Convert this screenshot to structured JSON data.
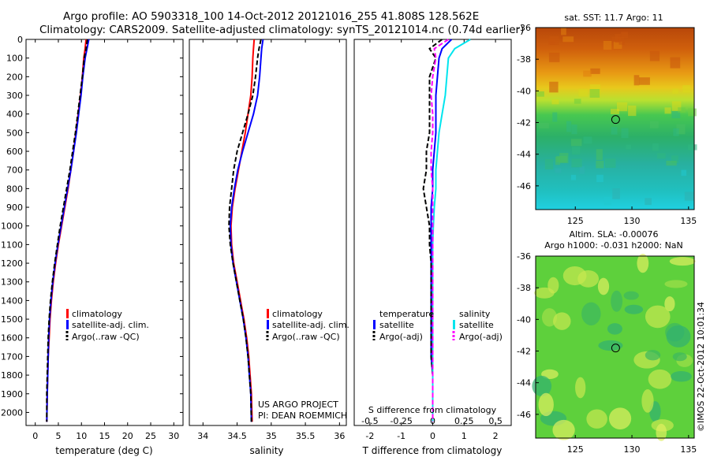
{
  "title_line1": "Argo profile: AO 5903318_100 14-Oct-2012 20121016_255 41.808S 128.562E",
  "title_line2": "Climatology: CARS2009. Satellite-adjusted climatology: synTS_20121014.nc (0.74d earlier)",
  "depth_ticks": [
    "0",
    "100",
    "200",
    "300",
    "400",
    "500",
    "600",
    "700",
    "800",
    "900",
    "1000",
    "1100",
    "1200",
    "1300",
    "1400",
    "1500",
    "1600",
    "1700",
    "1800",
    "1900",
    "2000"
  ],
  "colors": {
    "climatology": "#ff0000",
    "satellite": "#0000ff",
    "argo": "#000000",
    "sal_satellite": "#00e5ee",
    "sal_argo": "#ff00ff"
  },
  "chart_data": [
    {
      "type": "line",
      "xlabel": "temperature (deg C)",
      "xlim": [
        -2,
        32
      ],
      "ylim": [
        2070,
        0
      ],
      "xticks": [
        "0",
        "5",
        "10",
        "15",
        "20",
        "25",
        "30"
      ],
      "legend": [
        "climatology",
        "satellite-adj. clim.",
        "Argo(..raw -QC)"
      ],
      "series": [
        {
          "name": "climatology",
          "x": [
            11.0,
            10.8,
            10.5,
            10.2,
            9.8,
            9.3,
            8.8,
            8.3,
            7.7,
            7.1,
            6.4,
            5.7,
            5.0,
            4.4,
            3.9,
            3.5,
            3.2,
            3.0,
            2.8,
            2.7,
            2.6,
            2.5
          ],
          "y": [
            0,
            50,
            100,
            200,
            300,
            400,
            500,
            600,
            700,
            800,
            900,
            1000,
            1100,
            1200,
            1300,
            1400,
            1500,
            1600,
            1700,
            1800,
            1900,
            2050
          ]
        },
        {
          "name": "satellite-adj. clim.",
          "x": [
            11.6,
            11.2,
            10.8,
            10.3,
            9.9,
            9.4,
            8.9,
            8.3,
            7.7,
            7.0,
            6.3,
            5.6,
            4.9,
            4.3,
            3.8,
            3.4,
            3.1,
            2.9,
            2.8,
            2.7,
            2.6,
            2.5
          ],
          "y": [
            0,
            50,
            100,
            200,
            300,
            400,
            500,
            600,
            700,
            800,
            900,
            1000,
            1100,
            1200,
            1300,
            1400,
            1500,
            1600,
            1700,
            1800,
            1900,
            2050
          ]
        },
        {
          "name": "Argo(..raw -QC)",
          "x": [
            11.3,
            11.0,
            10.6,
            10.2,
            9.7,
            9.2,
            8.7,
            8.1,
            7.5,
            6.8,
            6.1,
            5.4,
            4.8,
            4.2,
            3.7,
            3.3,
            3.0,
            2.8,
            2.7,
            2.6,
            2.5,
            2.5
          ],
          "y": [
            0,
            50,
            100,
            200,
            300,
            400,
            500,
            600,
            700,
            800,
            900,
            1000,
            1100,
            1200,
            1300,
            1400,
            1500,
            1600,
            1700,
            1800,
            1900,
            2050
          ]
        }
      ]
    },
    {
      "type": "line",
      "xlabel": "salinity",
      "xlim": [
        33.8,
        36.1
      ],
      "ylim": [
        2070,
        0
      ],
      "xticks": [
        "34",
        "34.5",
        "35",
        "35.5",
        "36"
      ],
      "legend": [
        "climatology",
        "satellite-adj. clim.",
        "Argo(..raw -QC)"
      ],
      "series": [
        {
          "name": "climatology",
          "x": [
            34.75,
            34.74,
            34.73,
            34.72,
            34.7,
            34.66,
            34.62,
            34.57,
            34.52,
            34.47,
            34.43,
            34.41,
            34.42,
            34.45,
            34.5,
            34.55,
            34.6,
            34.64,
            34.67,
            34.69,
            34.71,
            34.72
          ],
          "y": [
            0,
            50,
            100,
            200,
            300,
            400,
            500,
            600,
            700,
            800,
            900,
            1000,
            1100,
            1200,
            1300,
            1400,
            1500,
            1600,
            1700,
            1800,
            1900,
            2050
          ]
        },
        {
          "name": "satellite-adj. clim.",
          "x": [
            34.88,
            34.86,
            34.85,
            34.83,
            34.8,
            34.74,
            34.66,
            34.58,
            34.51,
            34.46,
            34.42,
            34.4,
            34.41,
            34.44,
            34.49,
            34.54,
            34.59,
            34.63,
            34.66,
            34.68,
            34.7,
            34.71
          ],
          "y": [
            0,
            50,
            100,
            200,
            300,
            400,
            500,
            600,
            700,
            800,
            900,
            1000,
            1100,
            1200,
            1300,
            1400,
            1500,
            1600,
            1700,
            1800,
            1900,
            2050
          ]
        },
        {
          "name": "Argo(..raw -QC)",
          "x": [
            34.85,
            34.82,
            34.8,
            34.77,
            34.73,
            34.66,
            34.58,
            34.5,
            34.45,
            34.42,
            34.39,
            34.38,
            34.4,
            34.44,
            34.49,
            34.54,
            34.59,
            34.63,
            34.66,
            34.68,
            34.7,
            34.71
          ],
          "y": [
            0,
            50,
            100,
            200,
            300,
            400,
            500,
            600,
            700,
            800,
            900,
            1000,
            1100,
            1200,
            1300,
            1400,
            1500,
            1600,
            1700,
            1800,
            1900,
            2050
          ]
        }
      ]
    },
    {
      "type": "line",
      "xlabel": "T difference from climatology",
      "xlabel_top": "S difference from climatology",
      "xlim": [
        -2.5,
        2.5
      ],
      "ylim": [
        2070,
        0
      ],
      "xticks": [
        "-2",
        "-1",
        "0",
        "1",
        "2"
      ],
      "xticks_top": [
        "-0.5",
        "-0.25",
        "0",
        "0.25",
        "0.5"
      ],
      "legend_temperature_heading": "temperature",
      "legend_salinity_heading": "salinity",
      "legend_temperature": [
        "satellite",
        "Argo(-adj)"
      ],
      "legend_salinity": [
        "satellite",
        "Argo(-adj)"
      ],
      "series": [
        {
          "name": "satellite",
          "x": [
            0.6,
            0.3,
            0.2,
            0.15,
            0.1,
            0.1,
            0.1,
            0.05,
            0,
            0,
            -0.05,
            -0.05,
            -0.05,
            -0.05,
            -0.05,
            -0.05,
            -0.05,
            -0.05,
            -0.05,
            0,
            0,
            0
          ],
          "y": [
            0,
            50,
            100,
            200,
            300,
            400,
            500,
            600,
            700,
            800,
            900,
            1000,
            1100,
            1200,
            1300,
            1400,
            1500,
            1600,
            1700,
            1800,
            1900,
            2050
          ]
        },
        {
          "name": "Argo(-adj)",
          "x": [
            0.3,
            -0.1,
            0.1,
            -0.1,
            -0.1,
            -0.1,
            -0.1,
            -0.2,
            -0.2,
            -0.3,
            -0.2,
            -0.1,
            -0.1,
            -0.05,
            -0.05,
            -0.05,
            -0.05,
            -0.05,
            -0.05,
            0,
            0,
            0
          ],
          "y": [
            0,
            50,
            100,
            200,
            300,
            400,
            500,
            600,
            700,
            800,
            900,
            1000,
            1100,
            1200,
            1300,
            1400,
            1500,
            1600,
            1700,
            1800,
            1900,
            2050
          ]
        },
        {
          "name": "satellite",
          "x": [
            1.2,
            0.7,
            0.5,
            0.45,
            0.4,
            0.3,
            0.2,
            0.15,
            0.1,
            0.1,
            0.05,
            0.02,
            0,
            0,
            0,
            0,
            0,
            0,
            0,
            0,
            0,
            0
          ],
          "y": [
            0,
            50,
            100,
            200,
            300,
            400,
            500,
            600,
            700,
            800,
            900,
            1000,
            1100,
            1200,
            1300,
            1400,
            1500,
            1600,
            1700,
            1800,
            1900,
            2050
          ]
        },
        {
          "name": "Argo(-adj)",
          "x": [
            0.5,
            0.05,
            0.1,
            0.0,
            -0.05,
            0.0,
            0.0,
            -0.05,
            -0.05,
            0.0,
            0.0,
            0.0,
            0.0,
            0.0,
            0.0,
            0.0,
            0.0,
            0.0,
            0.0,
            0.0,
            0.0,
            0.0
          ],
          "y": [
            0,
            50,
            100,
            200,
            300,
            400,
            500,
            600,
            700,
            800,
            900,
            1000,
            1100,
            1200,
            1300,
            1400,
            1500,
            1600,
            1700,
            1800,
            1900,
            2050
          ]
        }
      ]
    },
    {
      "type": "heatmap",
      "title": "sat. SST: 11.7 Argo: 11",
      "xlim": [
        121.5,
        135.5
      ],
      "ylim": [
        -47.5,
        -36
      ],
      "xticks": [
        "125",
        "130",
        "135"
      ],
      "yticks": [
        "-36",
        "-38",
        "-40",
        "-42",
        "-44",
        "-46"
      ],
      "marker": {
        "lon": 128.562,
        "lat": -41.808
      }
    },
    {
      "type": "heatmap",
      "title": "Altim. SLA: -0.00076",
      "subtitle": "Argo h1000: -0.031 h2000: NaN",
      "xlim": [
        121.5,
        135.5
      ],
      "ylim": [
        -47.5,
        -36
      ],
      "xticks": [
        "125",
        "130",
        "135"
      ],
      "yticks": [
        "-36",
        "-38",
        "-40",
        "-42",
        "-44",
        "-46"
      ],
      "marker": {
        "lon": 128.562,
        "lat": -41.808
      }
    }
  ],
  "credit_line1": "US ARGO PROJECT",
  "credit_line2": "PI: DEAN ROEMMICH",
  "stamp": "©IMOS 22-Oct-2012 10:01:34"
}
